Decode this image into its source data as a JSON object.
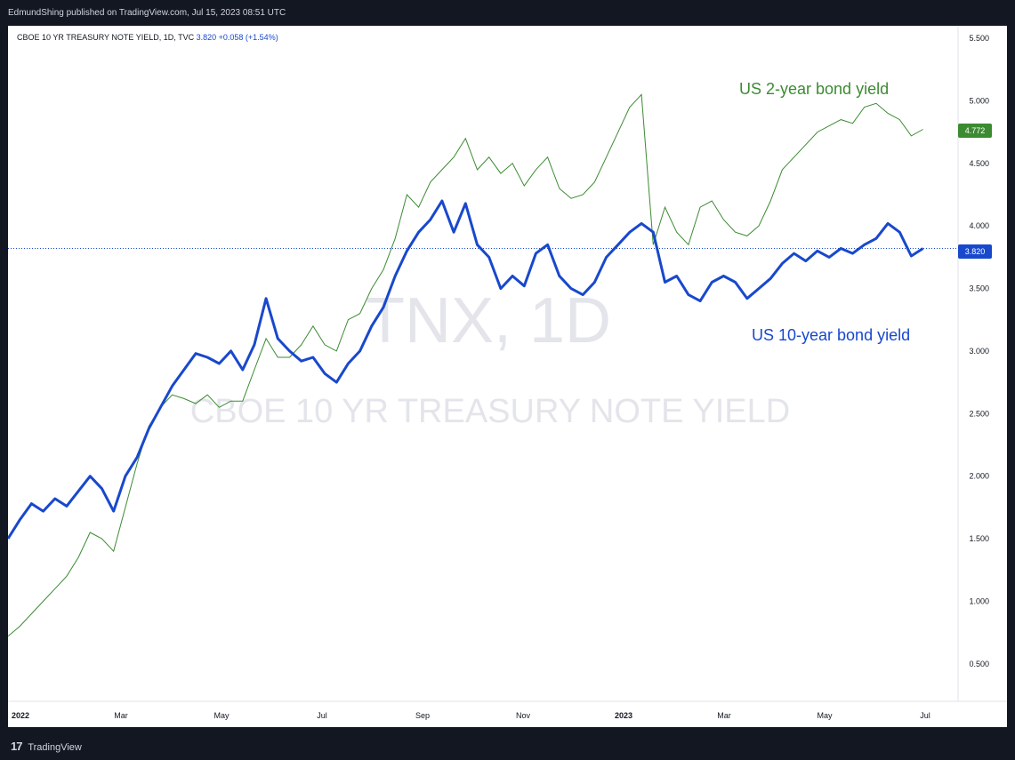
{
  "header": {
    "publisher": "EdmundShing published on TradingView.com, Jul 15, 2023 08:51 UTC"
  },
  "legend": {
    "symbol": "CBOE 10 YR TREASURY NOTE YIELD, 1D, TVC",
    "last": "3.820",
    "change": "+0.058 (+1.54%)"
  },
  "watermark": {
    "ticker": "TNX, 1D",
    "name": "CBOE 10 YR TREASURY NOTE YIELD"
  },
  "footer": {
    "brand": "TradingView",
    "mark": "17"
  },
  "colors": {
    "ten_year": "#1848cc",
    "two_year": "#3c8b32",
    "background": "#131722"
  },
  "chart_data": {
    "type": "line",
    "title": "CBOE 10 YR TREASURY NOTE YIELD, 1D, TVC",
    "x_ticks": [
      "2022",
      "Mar",
      "May",
      "Jul",
      "Sep",
      "Nov",
      "2023",
      "Mar",
      "May",
      "Jul"
    ],
    "y_ticks": [
      "5.500",
      "5.000",
      "4.500",
      "4.000",
      "3.500",
      "3.000",
      "2.500",
      "2.000",
      "1.500",
      "1.000",
      "0.500"
    ],
    "ylim": [
      0.2,
      5.6
    ],
    "xlim": [
      0,
      80
    ],
    "price_line": 3.82,
    "series": [
      {
        "name": "US 10-year bond yield",
        "label": "US 10-year bond yield",
        "last_label": "3.820",
        "x": [
          0,
          1,
          2,
          3,
          4,
          5,
          6,
          7,
          8,
          9,
          10,
          11,
          12,
          13,
          14,
          15,
          16,
          17,
          18,
          19,
          20,
          21,
          22,
          23,
          24,
          25,
          26,
          27,
          28,
          29,
          30,
          31,
          32,
          33,
          34,
          35,
          36,
          37,
          38,
          39,
          40,
          41,
          42,
          43,
          44,
          45,
          46,
          47,
          48,
          49,
          50,
          51,
          52,
          53,
          54,
          55,
          56,
          57,
          58,
          59,
          60,
          61,
          62,
          63,
          64,
          65,
          66,
          67,
          68,
          69,
          70,
          71,
          72,
          73,
          74,
          75,
          76,
          77,
          78
        ],
        "values": [
          1.5,
          1.65,
          1.78,
          1.72,
          1.82,
          1.76,
          1.88,
          2.0,
          1.9,
          1.72,
          2.0,
          2.15,
          2.38,
          2.55,
          2.72,
          2.85,
          2.98,
          2.95,
          2.9,
          3.0,
          2.85,
          3.05,
          3.42,
          3.1,
          3.0,
          2.92,
          2.95,
          2.82,
          2.75,
          2.9,
          3.0,
          3.2,
          3.35,
          3.6,
          3.8,
          3.95,
          4.05,
          4.2,
          3.95,
          4.18,
          3.85,
          3.75,
          3.5,
          3.6,
          3.52,
          3.78,
          3.85,
          3.6,
          3.5,
          3.45,
          3.55,
          3.75,
          3.85,
          3.95,
          4.02,
          3.95,
          3.55,
          3.6,
          3.45,
          3.4,
          3.55,
          3.6,
          3.55,
          3.42,
          3.5,
          3.58,
          3.7,
          3.78,
          3.72,
          3.8,
          3.75,
          3.82,
          3.78,
          3.85,
          3.9,
          4.02,
          3.95,
          3.76,
          3.82
        ]
      },
      {
        "name": "US 2-year bond yield",
        "label": "US 2-year bond yield",
        "last_label": "4.772",
        "x": [
          0,
          1,
          2,
          3,
          4,
          5,
          6,
          7,
          8,
          9,
          10,
          11,
          12,
          13,
          14,
          15,
          16,
          17,
          18,
          19,
          20,
          21,
          22,
          23,
          24,
          25,
          26,
          27,
          28,
          29,
          30,
          31,
          32,
          33,
          34,
          35,
          36,
          37,
          38,
          39,
          40,
          41,
          42,
          43,
          44,
          45,
          46,
          47,
          48,
          49,
          50,
          51,
          52,
          53,
          54,
          55,
          56,
          57,
          58,
          59,
          60,
          61,
          62,
          63,
          64,
          65,
          66,
          67,
          68,
          69,
          70,
          71,
          72,
          73,
          74,
          75,
          76,
          77,
          78
        ],
        "values": [
          0.72,
          0.8,
          0.9,
          1.0,
          1.1,
          1.2,
          1.35,
          1.55,
          1.5,
          1.4,
          1.75,
          2.1,
          2.4,
          2.55,
          2.65,
          2.62,
          2.58,
          2.65,
          2.55,
          2.6,
          2.6,
          2.85,
          3.1,
          2.95,
          2.95,
          3.05,
          3.2,
          3.05,
          3.0,
          3.25,
          3.3,
          3.5,
          3.65,
          3.9,
          4.25,
          4.15,
          4.35,
          4.45,
          4.55,
          4.7,
          4.45,
          4.55,
          4.42,
          4.5,
          4.32,
          4.45,
          4.55,
          4.3,
          4.22,
          4.25,
          4.35,
          4.55,
          4.75,
          4.95,
          5.05,
          3.85,
          4.15,
          3.95,
          3.85,
          4.15,
          4.2,
          4.05,
          3.95,
          3.92,
          4.0,
          4.2,
          4.45,
          4.55,
          4.65,
          4.75,
          4.8,
          4.85,
          4.82,
          4.95,
          4.98,
          4.9,
          4.85,
          4.72,
          4.772
        ]
      }
    ]
  }
}
